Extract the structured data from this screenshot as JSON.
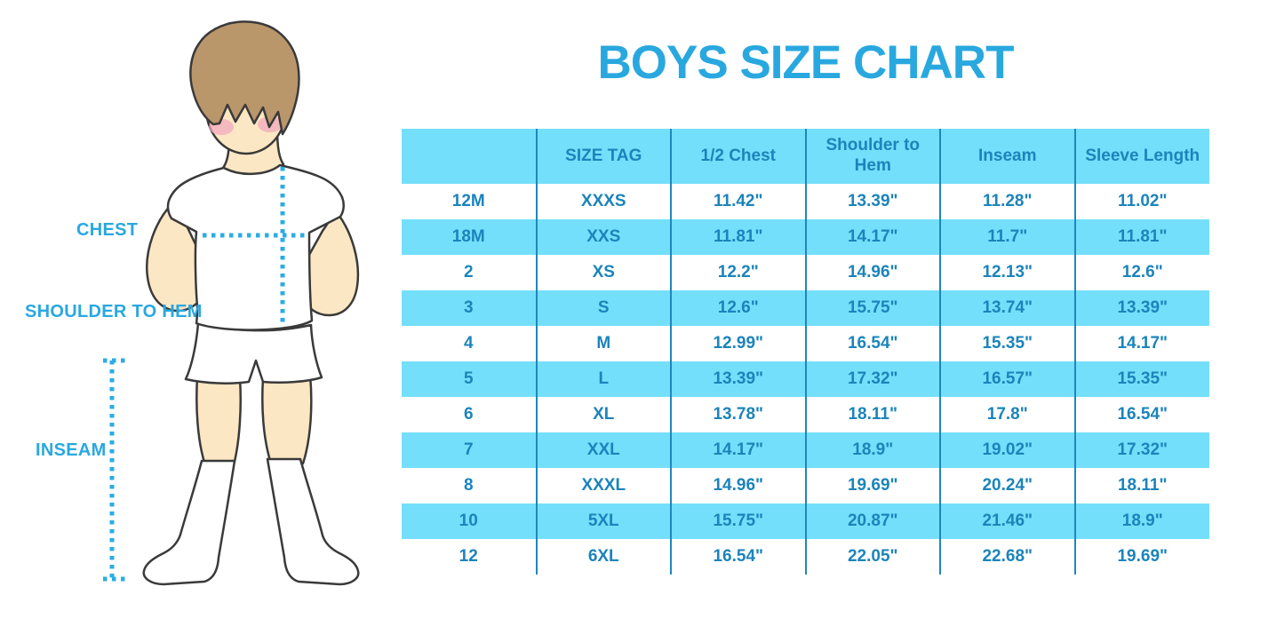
{
  "chart_data": {
    "type": "table",
    "title": "BOYS SIZE CHART",
    "columns": [
      "",
      "SIZE TAG",
      "1/2 Chest",
      "Shoulder to Hem",
      "Inseam",
      "Sleeve Length"
    ],
    "rows": [
      [
        "12M",
        "XXXS",
        "11.42\"",
        "13.39\"",
        "11.28\"",
        "11.02\""
      ],
      [
        "18M",
        "XXS",
        "11.81\"",
        "14.17\"",
        "11.7\"",
        "11.81\""
      ],
      [
        "2",
        "XS",
        "12.2\"",
        "14.96\"",
        "12.13\"",
        "12.6\""
      ],
      [
        "3",
        "S",
        "12.6\"",
        "15.75\"",
        "13.74\"",
        "13.39\""
      ],
      [
        "4",
        "M",
        "12.99\"",
        "16.54\"",
        "15.35\"",
        "14.17\""
      ],
      [
        "5",
        "L",
        "13.39\"",
        "17.32\"",
        "16.57\"",
        "15.35\""
      ],
      [
        "6",
        "XL",
        "13.78\"",
        "18.11\"",
        "17.8\"",
        "16.54\""
      ],
      [
        "7",
        "XXL",
        "14.17\"",
        "18.9\"",
        "19.02\"",
        "17.32\""
      ],
      [
        "8",
        "XXXL",
        "14.96\"",
        "19.69\"",
        "20.24\"",
        "18.11\""
      ],
      [
        "10",
        "5XL",
        "15.75\"",
        "20.87\"",
        "21.46\"",
        "18.9\""
      ],
      [
        "12",
        "6XL",
        "16.54\"",
        "22.05\"",
        "22.68\"",
        "19.69\""
      ]
    ],
    "layout_hints": {
      "header_background": "striped-cyan",
      "row_striping": "white/cyan alternating",
      "grid": "vertical column separators only",
      "legend": "none"
    }
  },
  "figure": {
    "labels": {
      "chest": "CHEST",
      "shoulder_to_hem": "SHOULDER TO HEM",
      "inseam": "INSEAM"
    }
  },
  "colors": {
    "accent": "#29A8DF",
    "table_text": "#1B84BB",
    "row_stripe": "#74DFFA",
    "grid_line": "#1F87BB",
    "dotted_line": "#2BACE4",
    "hair": "#BA966B",
    "skin": "#FBE7C3",
    "cheek": "#F2A6BE",
    "outline": "#3A3A3A"
  }
}
